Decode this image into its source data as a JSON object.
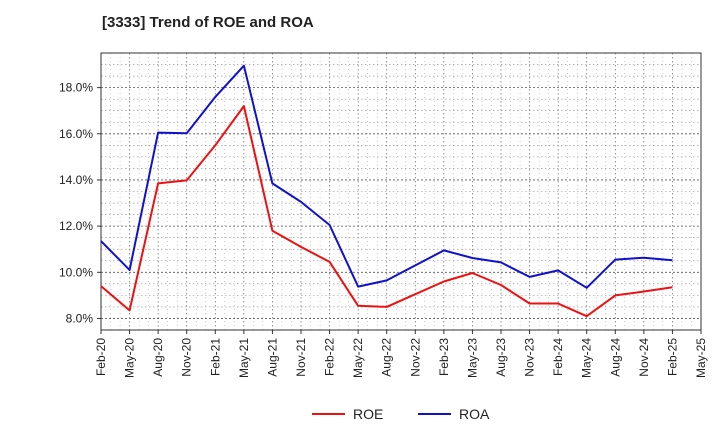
{
  "chart_data": {
    "type": "line",
    "title": "[3333]  Trend of ROE and ROA",
    "xlabel": "",
    "ylabel": "",
    "categories": [
      "Feb-20",
      "May-20",
      "Aug-20",
      "Nov-20",
      "Feb-21",
      "May-21",
      "Aug-21",
      "Nov-21",
      "Feb-22",
      "May-22",
      "Aug-22",
      "Nov-22",
      "Feb-23",
      "May-23",
      "Aug-23",
      "Nov-23",
      "Feb-24",
      "May-24",
      "Aug-24",
      "Nov-24",
      "Feb-25",
      "May-25"
    ],
    "y_ticks": [
      "8.0%",
      "10.0%",
      "12.0%",
      "14.0%",
      "16.0%",
      "18.0%"
    ],
    "ylim": [
      7.5,
      19.5
    ],
    "grid": true,
    "legend_position": "bottom",
    "series": [
      {
        "name": "ROE",
        "color": "#ee1111",
        "values": [
          9.4,
          8.35,
          13.85,
          13.98,
          15.5,
          17.2,
          11.8,
          11.1,
          10.45,
          8.55,
          8.5,
          9.05,
          9.6,
          9.97,
          9.45,
          8.65,
          8.65,
          8.1,
          9.0,
          9.17,
          9.35,
          null
        ]
      },
      {
        "name": "ROA",
        "color": "#1111cc",
        "values": [
          11.35,
          10.1,
          16.05,
          16.02,
          17.6,
          18.95,
          13.85,
          13.05,
          12.05,
          9.38,
          9.65,
          10.3,
          10.95,
          10.62,
          10.43,
          9.8,
          10.08,
          9.33,
          10.55,
          10.63,
          10.52,
          null
        ]
      }
    ]
  }
}
